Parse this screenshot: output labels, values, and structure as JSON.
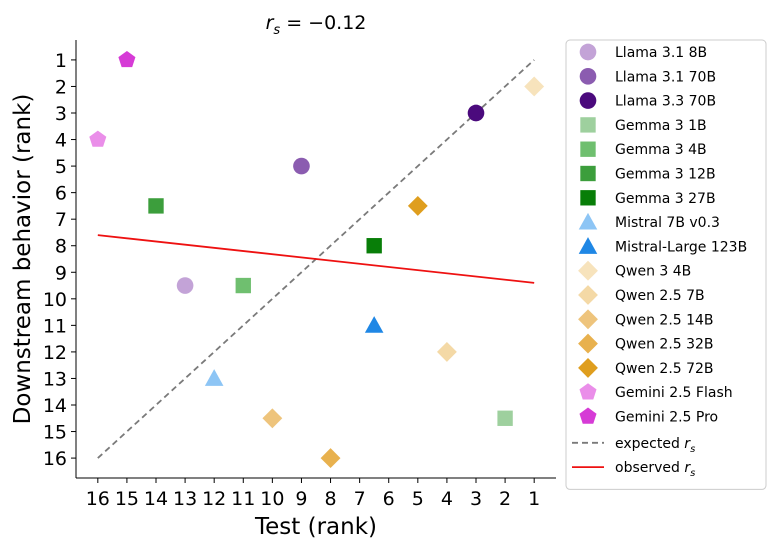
{
  "chart_data": {
    "type": "scatter",
    "title": {
      "prefix": "r",
      "sub": "s",
      "rest": " = −0.12"
    },
    "xlabel": "Test (rank)",
    "ylabel": "Downstream behavior (rank)",
    "x_ticks": [
      16,
      15,
      14,
      13,
      12,
      11,
      10,
      9,
      8,
      7,
      6,
      5,
      4,
      3,
      2,
      1
    ],
    "y_ticks": [
      1,
      2,
      3,
      4,
      5,
      6,
      7,
      8,
      9,
      10,
      11,
      12,
      13,
      14,
      15,
      16
    ],
    "xlim": [
      16.75,
      0.25
    ],
    "ylim": [
      16.75,
      0.25
    ],
    "x_inverted": true,
    "y_inverted": true,
    "legend_position": "outside-right",
    "series": [
      {
        "name": "Llama 3.1 8B",
        "color": "#c3a3d7",
        "marker": "circle",
        "points": [
          {
            "x": 13,
            "y": 9.5
          }
        ]
      },
      {
        "name": "Llama 3.1 70B",
        "color": "#8b5cb0",
        "marker": "circle",
        "points": [
          {
            "x": 9,
            "y": 5
          }
        ]
      },
      {
        "name": "Llama 3.3 70B",
        "color": "#4b0a7d",
        "marker": "circle",
        "points": [
          {
            "x": 3,
            "y": 3
          }
        ]
      },
      {
        "name": "Gemma 3 1B",
        "color": "#9ed09e",
        "marker": "square",
        "points": [
          {
            "x": 2,
            "y": 14.5
          }
        ]
      },
      {
        "name": "Gemma 3 4B",
        "color": "#6fbf6f",
        "marker": "square",
        "points": [
          {
            "x": 11,
            "y": 9.5
          }
        ]
      },
      {
        "name": "Gemma 3 12B",
        "color": "#3c9e3c",
        "marker": "square",
        "points": [
          {
            "x": 14,
            "y": 6.5
          }
        ]
      },
      {
        "name": "Gemma 3 27B",
        "color": "#087e08",
        "marker": "square",
        "points": [
          {
            "x": 6.5,
            "y": 8
          }
        ]
      },
      {
        "name": "Mistral 7B v0.3",
        "color": "#8dc5f5",
        "marker": "triangle",
        "points": [
          {
            "x": 12,
            "y": 13
          }
        ]
      },
      {
        "name": "Mistral-Large 123B",
        "color": "#1f87e5",
        "marker": "triangle",
        "points": [
          {
            "x": 6.5,
            "y": 11
          }
        ]
      },
      {
        "name": "Qwen 3 4B",
        "color": "#f7e3bc",
        "marker": "diamond",
        "points": [
          {
            "x": 1,
            "y": 2
          }
        ]
      },
      {
        "name": "Qwen 2.5 7B",
        "color": "#f4d9a6",
        "marker": "diamond",
        "points": [
          {
            "x": 4,
            "y": 12
          }
        ]
      },
      {
        "name": "Qwen 2.5 14B",
        "color": "#eec47c",
        "marker": "diamond",
        "points": [
          {
            "x": 10,
            "y": 14.5
          }
        ]
      },
      {
        "name": "Qwen 2.5 32B",
        "color": "#e8b14e",
        "marker": "diamond",
        "points": [
          {
            "x": 8,
            "y": 16
          }
        ]
      },
      {
        "name": "Qwen 2.5 72B",
        "color": "#df9e1e",
        "marker": "diamond",
        "points": [
          {
            "x": 5,
            "y": 6.5
          }
        ]
      },
      {
        "name": "Gemini 2.5 Flash",
        "color": "#ea8ee9",
        "marker": "pentagon",
        "points": [
          {
            "x": 16,
            "y": 4
          }
        ]
      },
      {
        "name": "Gemini 2.5 Pro",
        "color": "#d63bd6",
        "marker": "pentagon",
        "points": [
          {
            "x": 15,
            "y": 1
          }
        ]
      }
    ],
    "lines": [
      {
        "name": "expected",
        "sub": "s",
        "color": "#7a7a7a",
        "dashed": true,
        "from": {
          "x": 16,
          "y": 16
        },
        "to": {
          "x": 1,
          "y": 1
        }
      },
      {
        "name": "observed",
        "sub": "s",
        "color": "#ee1111",
        "dashed": false,
        "from": {
          "x": 16,
          "y": 7.6
        },
        "to": {
          "x": 1,
          "y": 9.4
        }
      }
    ]
  }
}
